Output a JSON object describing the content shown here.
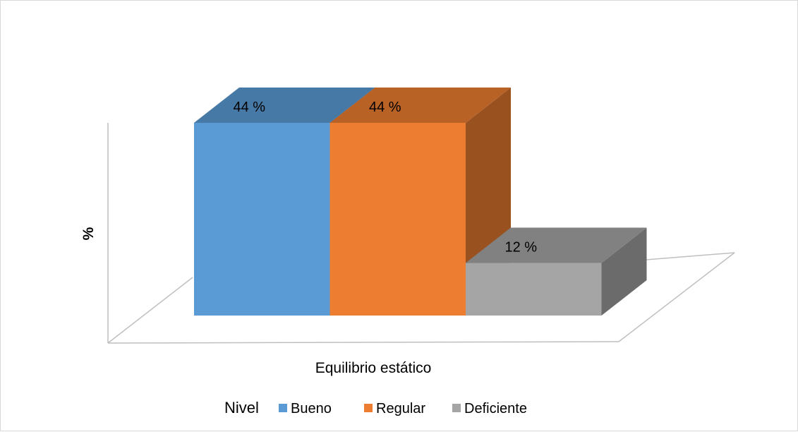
{
  "chart_data": {
    "type": "bar",
    "title": "",
    "xlabel": "Equilibrio estático",
    "ylabel": "%",
    "categories": [
      "Equilibrio estático"
    ],
    "ylim": [
      0,
      44
    ],
    "legend_title": "Nivel",
    "legend_position": "bottom",
    "grid": false,
    "series": [
      {
        "name": "Bueno",
        "values": [
          44
        ],
        "label": "44 %",
        "color": "#5b9bd5"
      },
      {
        "name": "Regular",
        "values": [
          44
        ],
        "label": "44 %",
        "color": "#ed7d31"
      },
      {
        "name": "Deficiente",
        "values": [
          12
        ],
        "label": "12 %",
        "color": "#a5a5a5"
      }
    ]
  }
}
